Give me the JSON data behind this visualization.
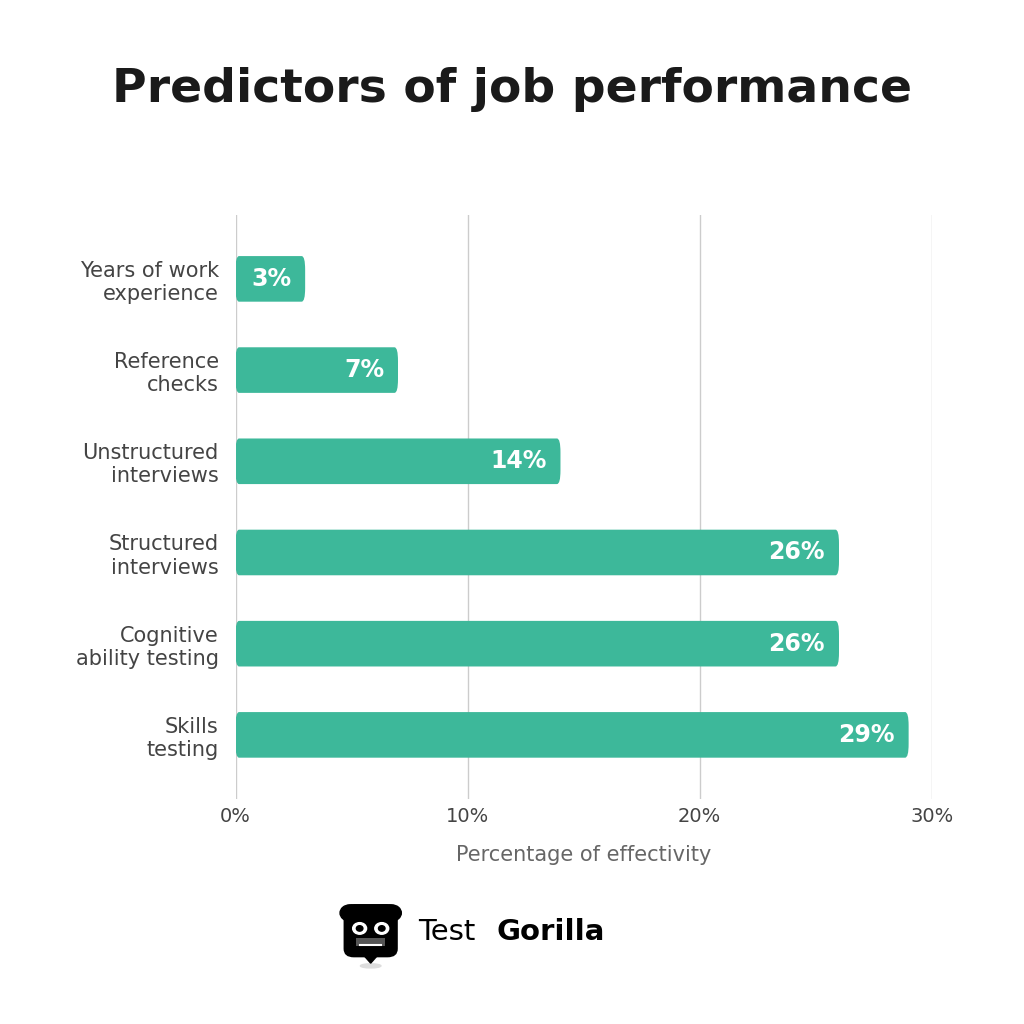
{
  "title": "Predictors of job performance",
  "categories": [
    "Skills\ntesting",
    "Cognitive\nability testing",
    "Structured\ninterviews",
    "Unstructured\ninterviews",
    "Reference\nchecks",
    "Years of work\nexperience"
  ],
  "values": [
    29,
    26,
    26,
    14,
    7,
    3
  ],
  "labels": [
    "29%",
    "26%",
    "26%",
    "14%",
    "7%",
    "3%"
  ],
  "bar_color": "#3db89a",
  "bar_text_color": "#ffffff",
  "background_color": "#ffffff",
  "title_color": "#1a1a1a",
  "axis_label_color": "#666666",
  "tick_label_color": "#444444",
  "xlabel": "Percentage of effectivity",
  "xlim": [
    0,
    30
  ],
  "xticks": [
    0,
    10,
    20,
    30
  ],
  "xticklabels": [
    "0%",
    "10%",
    "20%",
    "30%"
  ],
  "title_fontsize": 34,
  "bar_label_fontsize": 17,
  "ytick_fontsize": 15,
  "xtick_fontsize": 14,
  "xlabel_fontsize": 15,
  "grid_color": "#cccccc",
  "logo_text_regular": "Test",
  "logo_text_bold": "Gorilla",
  "bar_height": 0.5,
  "bar_spacing": 1.0
}
